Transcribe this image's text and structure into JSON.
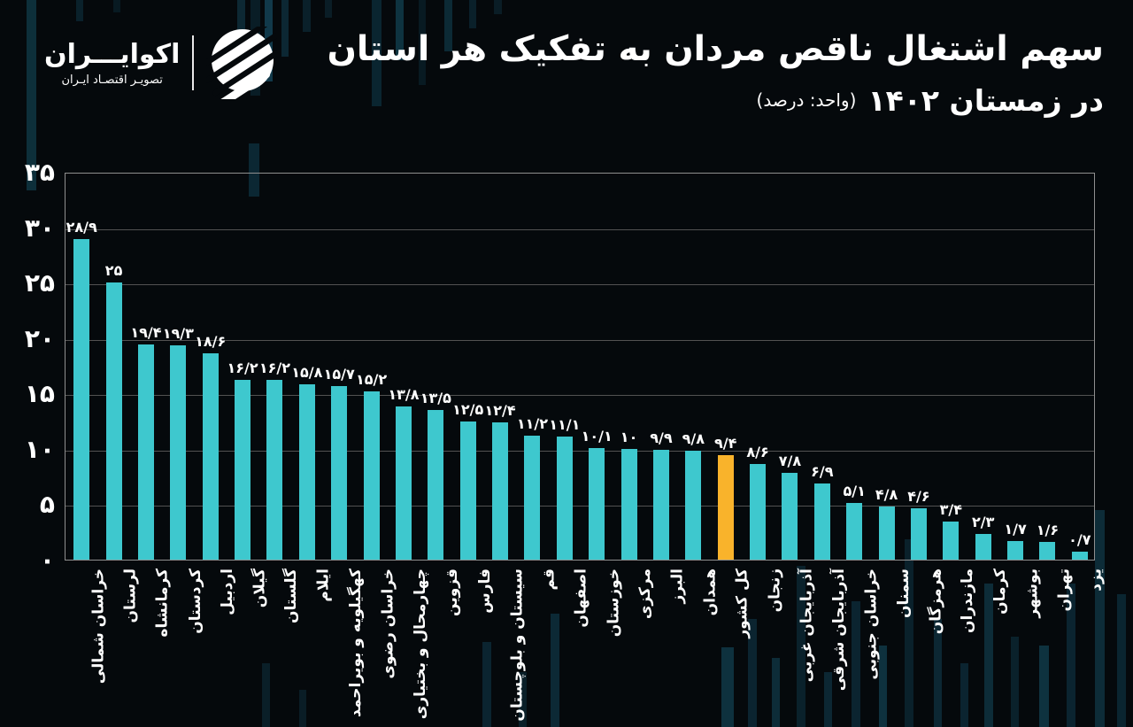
{
  "logo": {
    "wordmark": "اکوایـــران",
    "tagline": "تصویـر اقتصـاد ایـران"
  },
  "title": {
    "line1": "سهم اشتغال ناقص مردان به تفکیک هر استان",
    "line2_bold": "در زمستان ۱۴۰۲",
    "line2_unit": "(واحد: درصد)"
  },
  "chart_data": {
    "type": "bar",
    "title": "سهم اشتغال ناقص مردان به تفکیک هر استان در زمستان ۱۴۰۲",
    "unit": "درصد",
    "ylim": [
      0,
      35
    ],
    "yticks": [
      0,
      5,
      10,
      15,
      20,
      25,
      30,
      35
    ],
    "ytick_labels_fa": [
      "۰",
      "۵",
      "۱۰",
      "۱۵",
      "۲۰",
      "۲۵",
      "۳۰",
      "۳۵"
    ],
    "grid": true,
    "legend": "none",
    "bar_color": "#3EC8CE",
    "highlight_color": "#F9B32B",
    "highlight_category": "کل کشور",
    "highlight_index": 20,
    "categories": [
      "خراسان شمالی",
      "لرستان",
      "کرمانشاه",
      "کردستان",
      "اردبیل",
      "گیلان",
      "گلستان",
      "ایلام",
      "کهگیلویه و بویراحمد",
      "خراسان رضوی",
      "چهارمحال و بختیاری",
      "قزوین",
      "فارس",
      "سیستان و بلوچستان",
      "قم",
      "اصفهان",
      "خوزستان",
      "مرکزی",
      "البرز",
      "همدان",
      "کل کشور",
      "زنجان",
      "آذربایجان غربی",
      "آذربایجان شرقی",
      "خراسان جنوبی",
      "سمنان",
      "هرمزگان",
      "مازندران",
      "کرمان",
      "بوشهر",
      "تهران",
      "یزد"
    ],
    "values": [
      28.9,
      25,
      19.4,
      19.3,
      18.6,
      16.2,
      16.2,
      15.8,
      15.7,
      15.2,
      13.8,
      13.5,
      12.5,
      12.4,
      11.2,
      11.1,
      10.1,
      10,
      9.9,
      9.8,
      9.4,
      8.6,
      7.8,
      6.9,
      5.1,
      4.8,
      4.6,
      3.4,
      2.3,
      1.7,
      1.6,
      0.7
    ],
    "value_labels_fa": [
      "۲۸/۹",
      "۲۵",
      "۱۹/۴",
      "۱۹/۳",
      "۱۸/۶",
      "۱۶/۲",
      "۱۶/۲",
      "۱۵/۸",
      "۱۵/۷",
      "۱۵/۲",
      "۱۳/۸",
      "۱۳/۵",
      "۱۲/۵",
      "۱۲/۴",
      "۱۱/۲",
      "۱۱/۱",
      "۱۰/۱",
      "۱۰",
      "۹/۹",
      "۹/۸",
      "۹/۴",
      "۸/۶",
      "۷/۸",
      "۶/۹",
      "۵/۱",
      "۴/۸",
      "۴/۶",
      "۳/۴",
      "۲/۳",
      "۱/۷",
      "۱/۶",
      "۰/۷"
    ]
  },
  "colors": {
    "background": "#05090c",
    "text": "#ffffff",
    "grid": "#525252",
    "plot_border": "#8f8f8f"
  }
}
